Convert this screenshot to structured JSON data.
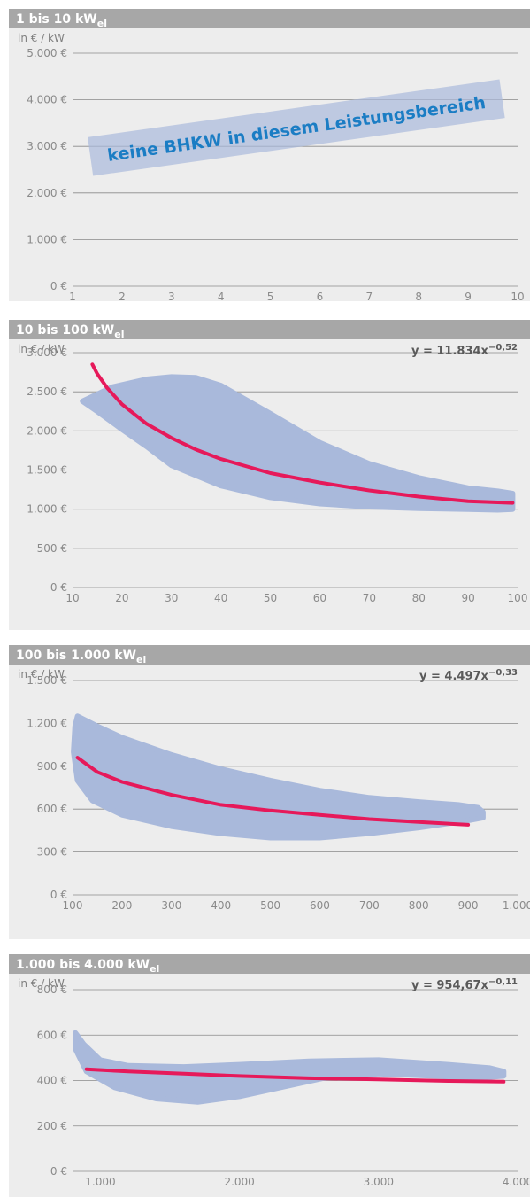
{
  "colors": {
    "header_bg": "#a7a7a7",
    "panel_bg": "#ededed",
    "band": "#a9b9db",
    "curve": "#e6195a",
    "grid": "#8a8a8a",
    "banner_text": "#1b7dc4"
  },
  "chart_data": [
    {
      "type": "line",
      "title": "1 bis 10 kW",
      "title_sub": "el",
      "ylabel": "in € / kW",
      "formula": "",
      "annotation": "keine BHKW in diesem Leistungsbereich",
      "xlim": [
        1,
        10
      ],
      "ylim": [
        0,
        5000
      ],
      "x_ticks": [
        1,
        2,
        3,
        4,
        5,
        6,
        7,
        8,
        9,
        10
      ],
      "x_tick_labels": [
        "1",
        "2",
        "3",
        "4",
        "5",
        "6",
        "7",
        "8",
        "9",
        "10"
      ],
      "y_ticks": [
        0,
        1000,
        2000,
        3000,
        4000,
        5000
      ],
      "y_tick_labels": [
        "0 €",
        "1.000 €",
        "2.000 €",
        "3.000 €",
        "4.000 €",
        "5.000 €"
      ],
      "band_upper": [],
      "band_lower": [],
      "curve": []
    },
    {
      "type": "line",
      "title": "10 bis 100 kW",
      "title_sub": "el",
      "ylabel": "in € / kW",
      "formula_base": "y = 11.834x",
      "formula_exp": "−0,52",
      "xlim": [
        10,
        100
      ],
      "ylim": [
        0,
        3000
      ],
      "x_ticks": [
        10,
        20,
        30,
        40,
        50,
        60,
        70,
        80,
        90,
        100
      ],
      "x_tick_labels": [
        "10",
        "20",
        "30",
        "40",
        "50",
        "60",
        "70",
        "80",
        "90",
        "100"
      ],
      "y_ticks": [
        0,
        500,
        1000,
        1500,
        2000,
        2500,
        3000
      ],
      "y_tick_labels": [
        "0 €",
        "500 €",
        "1.000 €",
        "1.500 €",
        "2.000 €",
        "2.500 €",
        "3.000 €"
      ],
      "band_upper": [
        [
          12,
          2380
        ],
        [
          18,
          2560
        ],
        [
          25,
          2660
        ],
        [
          30,
          2690
        ],
        [
          35,
          2680
        ],
        [
          40,
          2580
        ],
        [
          50,
          2220
        ],
        [
          60,
          1850
        ],
        [
          70,
          1580
        ],
        [
          80,
          1400
        ],
        [
          90,
          1270
        ],
        [
          96,
          1230
        ],
        [
          99,
          1200
        ]
      ],
      "band_lower": [
        [
          99,
          1000
        ],
        [
          96,
          990
        ],
        [
          90,
          1000
        ],
        [
          80,
          1010
        ],
        [
          70,
          1030
        ],
        [
          60,
          1070
        ],
        [
          50,
          1150
        ],
        [
          40,
          1300
        ],
        [
          30,
          1560
        ],
        [
          25,
          1800
        ],
        [
          20,
          2020
        ],
        [
          15,
          2250
        ],
        [
          12,
          2380
        ]
      ],
      "curve": [
        [
          14,
          2850
        ],
        [
          15,
          2730
        ],
        [
          17,
          2550
        ],
        [
          20,
          2340
        ],
        [
          25,
          2090
        ],
        [
          30,
          1910
        ],
        [
          35,
          1760
        ],
        [
          40,
          1640
        ],
        [
          50,
          1460
        ],
        [
          60,
          1340
        ],
        [
          70,
          1240
        ],
        [
          80,
          1160
        ],
        [
          90,
          1100
        ],
        [
          99,
          1080
        ]
      ]
    },
    {
      "type": "line",
      "title": "100 bis 1.000 kW",
      "title_sub": "el",
      "ylabel": "in € / kW",
      "formula_base": "y = 4.497x",
      "formula_exp": "−0,33",
      "xlim": [
        100,
        1000
      ],
      "ylim": [
        0,
        1500
      ],
      "x_ticks": [
        100,
        200,
        300,
        400,
        500,
        600,
        700,
        800,
        900,
        1000
      ],
      "x_tick_labels": [
        "100",
        "200",
        "300",
        "400",
        "500",
        "600",
        "700",
        "800",
        "900",
        "1.000"
      ],
      "y_ticks": [
        0,
        300,
        600,
        900,
        1200,
        1500
      ],
      "y_tick_labels": [
        "0 €",
        "300 €",
        "600 €",
        "900 €",
        "1.200 €",
        "1.500 €"
      ],
      "band_upper": [
        [
          110,
          1250
        ],
        [
          150,
          1180
        ],
        [
          200,
          1100
        ],
        [
          300,
          980
        ],
        [
          400,
          880
        ],
        [
          500,
          800
        ],
        [
          600,
          730
        ],
        [
          700,
          680
        ],
        [
          800,
          650
        ],
        [
          880,
          630
        ],
        [
          920,
          610
        ],
        [
          930,
          580
        ]
      ],
      "band_lower": [
        [
          930,
          540
        ],
        [
          900,
          520
        ],
        [
          800,
          470
        ],
        [
          700,
          430
        ],
        [
          600,
          400
        ],
        [
          500,
          400
        ],
        [
          400,
          430
        ],
        [
          300,
          480
        ],
        [
          200,
          560
        ],
        [
          140,
          660
        ],
        [
          110,
          800
        ],
        [
          102,
          1000
        ],
        [
          105,
          1180
        ],
        [
          110,
          1250
        ]
      ],
      "curve": [
        [
          110,
          960
        ],
        [
          150,
          860
        ],
        [
          200,
          790
        ],
        [
          300,
          700
        ],
        [
          400,
          630
        ],
        [
          500,
          590
        ],
        [
          600,
          560
        ],
        [
          700,
          530
        ],
        [
          800,
          510
        ],
        [
          900,
          490
        ]
      ]
    },
    {
      "type": "line",
      "title": "1.000 bis 4.000 kW",
      "title_sub": "el",
      "ylabel": "in € / kW",
      "formula_base": "y = 954,67x",
      "formula_exp": "−0,11",
      "xlim": [
        800,
        4000
      ],
      "ylim": [
        0,
        800
      ],
      "x_ticks": [
        1000,
        2000,
        3000,
        4000
      ],
      "x_tick_labels": [
        "1.000",
        "2.000",
        "3.000",
        "4.000"
      ],
      "y_ticks": [
        0,
        200,
        400,
        600,
        800
      ],
      "y_tick_labels": [
        "0 €",
        "200 €",
        "400 €",
        "600 €",
        "800 €"
      ],
      "extra_gridline": 800,
      "band_upper": [
        [
          820,
          610
        ],
        [
          880,
          560
        ],
        [
          1000,
          490
        ],
        [
          1200,
          465
        ],
        [
          1600,
          460
        ],
        [
          2000,
          470
        ],
        [
          2500,
          485
        ],
        [
          3000,
          490
        ],
        [
          3500,
          470
        ],
        [
          3800,
          455
        ],
        [
          3900,
          440
        ]
      ],
      "band_lower": [
        [
          3900,
          420
        ],
        [
          3700,
          410
        ],
        [
          3400,
          420
        ],
        [
          3000,
          430
        ],
        [
          2600,
          410
        ],
        [
          2300,
          370
        ],
        [
          2000,
          330
        ],
        [
          1700,
          305
        ],
        [
          1400,
          320
        ],
        [
          1100,
          370
        ],
        [
          900,
          440
        ],
        [
          820,
          540
        ],
        [
          820,
          610
        ]
      ],
      "curve": [
        [
          900,
          450
        ],
        [
          1200,
          440
        ],
        [
          1600,
          430
        ],
        [
          2000,
          420
        ],
        [
          2500,
          410
        ],
        [
          3000,
          405
        ],
        [
          3500,
          398
        ],
        [
          3900,
          395
        ]
      ]
    }
  ]
}
